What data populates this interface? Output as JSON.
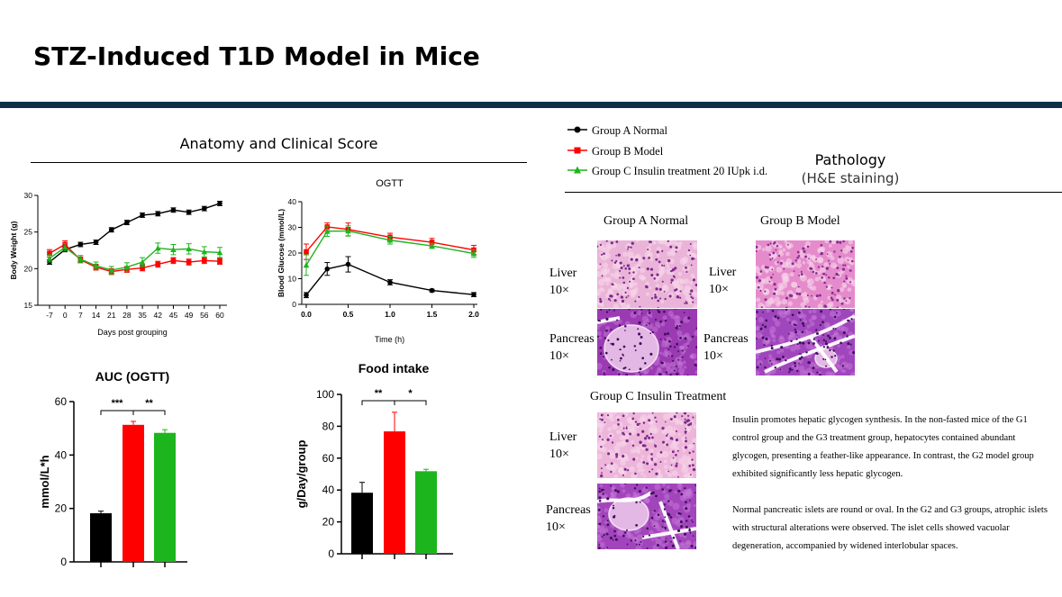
{
  "slide_title": "STZ-Induced T1D Model in Mice",
  "left_panel": {
    "heading": "Anatomy and Clinical Score"
  },
  "legend": [
    {
      "label": "Group A Normal",
      "color": "#000000",
      "marker": "circle"
    },
    {
      "label": "Group B Model",
      "color": "#ff0000",
      "marker": "square"
    },
    {
      "label": "Group C Insulin treatment 20 IUpk i.d.",
      "color": "#1db51d",
      "marker": "triangle"
    }
  ],
  "pathology": {
    "heading": "Pathology",
    "subheading": "(H&E staining)",
    "group_a_title": "Group A Normal",
    "group_b_title": "Group B Model",
    "group_c_title": "Group C Insulin Treatment",
    "liver_label": "Liver",
    "pancreas_label": "Pancreas",
    "magnification": "10×",
    "description_1": "Insulin promotes hepatic glycogen synthesis. In the non-fasted mice of the G1 control group and the G3 treatment group, hepatocytes contained abundant glycogen, presenting a feather-like appearance. In contrast, the G2 model group exhibited significantly less hepatic glycogen.",
    "description_2": "Normal pancreatic islets are round or oval. In the G2 and G3 groups, atrophic islets with structural alterations were observed. The islet cells showed vacuolar degeneration, accompanied by widened interlobular spaces."
  },
  "colors": {
    "black": "#000000",
    "red": "#ff0000",
    "green": "#1db51d",
    "liver": "#e8a6cf",
    "pancreas": "#9a3fb5"
  },
  "chart_data": [
    {
      "id": "body-weight",
      "type": "line",
      "title": "",
      "xlabel": "Days post grouping",
      "ylabel": "Body Weight (g)",
      "ylim": [
        15,
        30
      ],
      "yticks": [
        15,
        20,
        25,
        30
      ],
      "x": [
        -7,
        0,
        7,
        14,
        21,
        28,
        35,
        42,
        45,
        49,
        56,
        60
      ],
      "x_tick_labels": [
        "-7",
        "0",
        "7",
        "14",
        "21",
        "28",
        "35",
        "42",
        "45",
        "49",
        "56",
        "60"
      ],
      "series": [
        {
          "name": "Group A Normal",
          "values": [
            20.9,
            22.6,
            23.3,
            23.6,
            25.3,
            26.3,
            27.3,
            27.5,
            28.0,
            27.7,
            28.2,
            28.9
          ],
          "errors": [
            0.3,
            0.3,
            0.3,
            0.3,
            0.3,
            0.3,
            0.3,
            0.3,
            0.3,
            0.3,
            0.3,
            0.3
          ]
        },
        {
          "name": "Group B Model",
          "values": [
            22.1,
            23.3,
            21.2,
            20.2,
            19.6,
            19.9,
            20.1,
            20.6,
            21.1,
            20.9,
            21.1,
            21.0
          ],
          "errors": [
            0.5,
            0.5,
            0.4,
            0.4,
            0.4,
            0.4,
            0.4,
            0.4,
            0.4,
            0.4,
            0.4,
            0.4
          ]
        },
        {
          "name": "Group C Insulin treatment 20 IUpk i.d.",
          "values": [
            21.4,
            22.9,
            21.3,
            20.4,
            19.8,
            20.2,
            20.9,
            22.8,
            22.6,
            22.7,
            22.3,
            22.2
          ],
          "errors": [
            0.5,
            0.5,
            0.5,
            0.5,
            0.5,
            0.6,
            0.6,
            0.7,
            0.7,
            0.7,
            0.7,
            0.7
          ]
        }
      ]
    },
    {
      "id": "ogtt",
      "type": "line",
      "title": "OGTT",
      "xlabel": "Time (h)",
      "ylabel": "Blood Glucose (mmol/L)",
      "xlim": [
        0,
        2.0
      ],
      "ylim": [
        0,
        40
      ],
      "xticks": [
        "0.0",
        "0.5",
        "1.0",
        "1.5",
        "2.0"
      ],
      "yticks": [
        0,
        10,
        20,
        30,
        40
      ],
      "x": [
        0,
        0.25,
        0.5,
        1.0,
        1.5,
        2.0
      ],
      "series": [
        {
          "name": "Group A Normal",
          "values": [
            3.6,
            13.8,
            15.6,
            8.6,
            5.4,
            3.8
          ],
          "errors": [
            1.0,
            2.5,
            3.0,
            1.0,
            0.5,
            0.8
          ]
        },
        {
          "name": "Group B Model",
          "values": [
            20.5,
            30.2,
            29.2,
            26.2,
            24.2,
            21.2
          ],
          "errors": [
            3.0,
            1.5,
            2.5,
            1.5,
            1.5,
            1.8
          ]
        },
        {
          "name": "Group C Insulin treatment 20 IUpk i.d.",
          "values": [
            15.3,
            28.5,
            28.6,
            25.0,
            22.8,
            19.8
          ],
          "errors": [
            4.0,
            2.0,
            2.0,
            1.5,
            1.0,
            1.5
          ]
        }
      ]
    },
    {
      "id": "auc-ogtt",
      "type": "bar",
      "title": "AUC (OGTT)",
      "ylabel": "mmol/L*h",
      "ylim": [
        0,
        60
      ],
      "yticks": [
        0,
        20,
        40,
        60
      ],
      "categories": [
        "Group A Normal",
        "Group B Model",
        "Group C Insulin treatment 20 IUpk i.d."
      ],
      "values": [
        18.2,
        51.3,
        48.3
      ],
      "errors": [
        0.8,
        1.3,
        1.2
      ],
      "significance": [
        {
          "from": 0,
          "to": 1,
          "label": "***"
        },
        {
          "from": 1,
          "to": 2,
          "label": "**"
        }
      ]
    },
    {
      "id": "food-intake",
      "type": "bar",
      "title": "Food intake",
      "ylabel": "g/Day/group",
      "ylim": [
        0,
        100
      ],
      "yticks": [
        0,
        20,
        40,
        60,
        80,
        100
      ],
      "categories": [
        "Group A Normal",
        "Group B Model",
        "Group C Insulin treatment 20 IUpk i.d."
      ],
      "values": [
        38.3,
        76.8,
        51.8
      ],
      "errors": [
        6.5,
        12.0,
        1.2
      ],
      "significance": [
        {
          "from": 0,
          "to": 1,
          "label": "**"
        },
        {
          "from": 1,
          "to": 2,
          "label": "*"
        }
      ]
    }
  ]
}
